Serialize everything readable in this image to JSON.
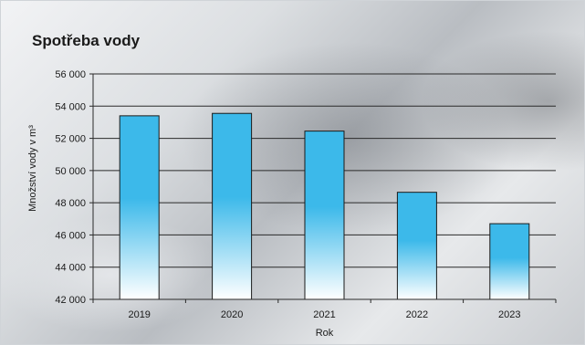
{
  "chart_data": {
    "type": "bar",
    "title": "Spotřeba vody",
    "categories": [
      "2019",
      "2020",
      "2021",
      "2022",
      "2023"
    ],
    "values": [
      53400,
      53550,
      52450,
      48650,
      46700
    ],
    "xlabel": "Rok",
    "ylabel": "Množství vody v m³",
    "ylim": [
      42000,
      56000
    ],
    "yticks": [
      42000,
      44000,
      46000,
      48000,
      50000,
      52000,
      54000,
      56000
    ],
    "ytick_labels": [
      "42 000",
      "44 000",
      "46 000",
      "48 000",
      "50 000",
      "52 000",
      "54 000",
      "56 000"
    ],
    "grid": true,
    "legend": "none",
    "bar_color_top": "#3cb9ea",
    "bar_color_bottom": "#ffffff"
  }
}
